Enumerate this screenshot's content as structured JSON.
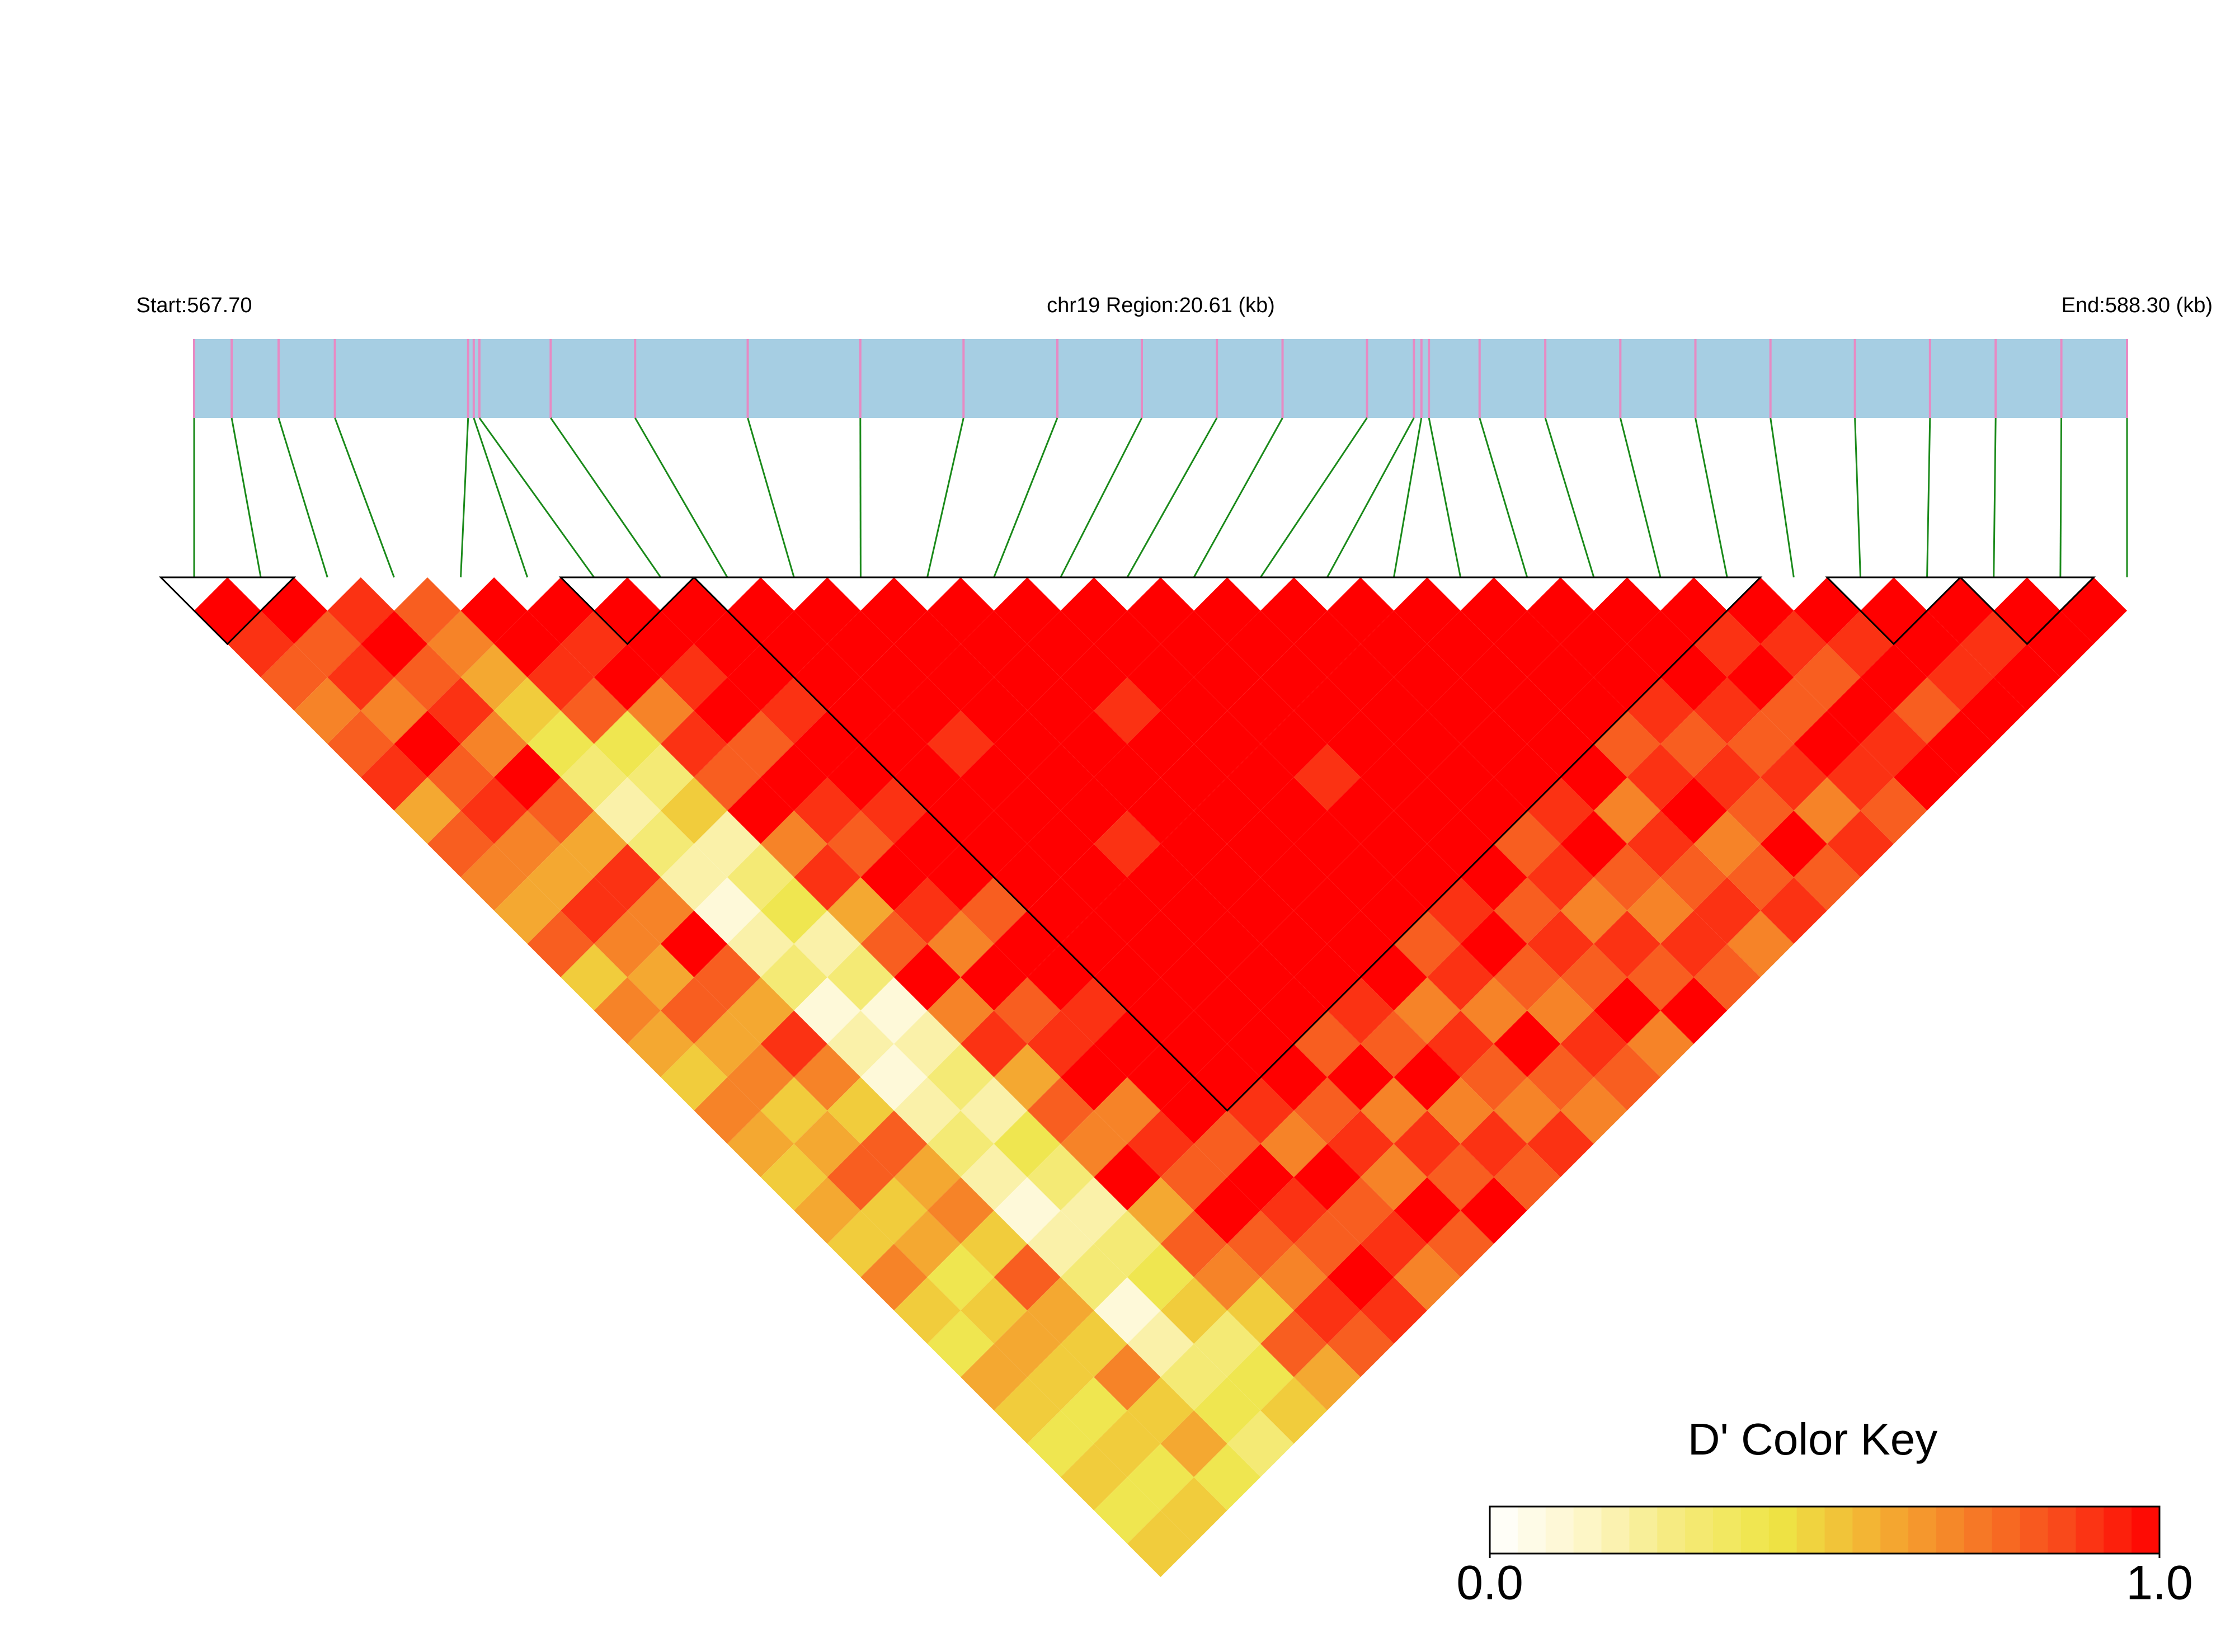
{
  "chart_data": {
    "type": "ld_heatmap",
    "start_label": "Start:567.70",
    "region_label": "chr19 Region:20.61 (kb)",
    "end_label": "End:588.30 (kb)",
    "xlim": [
      567.7,
      588.3
    ],
    "snp_positions": [
      567.7,
      568.1,
      568.6,
      569.2,
      570.62,
      570.68,
      570.74,
      571.5,
      572.4,
      573.6,
      574.8,
      575.9,
      576.9,
      577.8,
      578.6,
      579.3,
      580.2,
      580.7,
      580.78,
      580.86,
      581.4,
      582.1,
      582.9,
      583.7,
      584.5,
      585.4,
      586.2,
      586.9,
      587.6,
      588.3
    ],
    "dprime": [
      [
        1,
        0.9,
        0.8,
        0.7,
        0.8,
        0.9,
        0.6,
        0.8,
        0.7,
        0.6,
        0.8,
        0.5,
        0.7,
        0.6,
        0.5,
        0.7,
        0.6,
        0.5,
        0.6,
        0.5,
        0.7,
        0.5,
        0.4,
        0.6,
        0.5,
        0.4,
        0.5,
        0.4,
        0.5
      ],
      [
        1,
        0.8,
        0.9,
        0.7,
        1,
        0.8,
        0.9,
        0.7,
        0.6,
        0.9,
        0.7,
        0.6,
        0.8,
        0.6,
        0.7,
        0.5,
        0.6,
        0.8,
        0.5,
        0.6,
        0.4,
        0.5,
        0.6,
        0.5,
        0.4,
        0.5,
        0.4,
        0.5
      ],
      [
        0.9,
        1,
        0.8,
        0.9,
        0.7,
        1,
        0.8,
        0.6,
        0.9,
        0.7,
        1,
        0.8,
        0.6,
        0.9,
        0.7,
        0.5,
        0.8,
        0.6,
        0.7,
        0.5,
        0.8,
        0.6,
        0.5,
        0.7,
        0.5,
        0.6,
        0.4
      ],
      [
        0.8,
        0.7,
        0.6,
        0.5,
        0.4,
        0.3,
        0.2,
        0.3,
        0.2,
        0.1,
        0.2,
        0.3,
        0.1,
        0.2,
        0.1,
        0.2,
        0.3,
        0.2,
        0.1,
        0.2,
        0.3,
        0.1,
        0.2,
        0.3,
        0.4,
        0.3
      ],
      [
        1,
        1,
        0.9,
        0.8,
        0.4,
        0.3,
        0.5,
        0.2,
        0.3,
        0.4,
        0.2,
        0.3,
        0.1,
        0.2,
        0.3,
        0.2,
        0.4,
        0.3,
        0.2,
        0.3,
        0.4,
        0.5,
        0.3,
        0.4,
        0.5
      ],
      [
        1,
        0.9,
        1,
        0.7,
        0.9,
        0.8,
        1,
        0.7,
        0.9,
        0.6,
        0.8,
        1,
        0.7,
        0.9,
        0.6,
        0.8,
        0.7,
        1,
        0.6,
        0.8,
        0.7,
        0.5,
        0.8,
        0.6
      ],
      [
        1,
        1,
        0.9,
        1,
        0.8,
        1,
        0.9,
        0.8,
        1,
        0.9,
        0.7,
        1,
        0.8,
        0.9,
        1,
        0.7,
        0.9,
        0.8,
        1,
        0.8,
        0.7,
        0.9,
        0.8
      ],
      [
        1,
        1,
        1,
        0.9,
        1,
        1,
        0.9,
        1,
        1,
        0.8,
        1,
        1,
        0.9,
        1,
        1,
        1,
        0.8,
        1,
        0.9,
        0.8,
        1,
        0.9
      ],
      [
        1,
        1,
        1,
        1,
        1,
        1,
        1,
        1,
        1,
        1,
        1,
        1,
        1,
        1,
        1,
        0.9,
        0.7,
        1,
        0.8,
        0.9,
        0.7
      ],
      [
        1,
        1,
        1,
        1,
        0.9,
        1,
        1,
        1,
        1,
        1,
        1,
        1,
        1,
        1,
        1,
        0.8,
        0.9,
        0.7,
        1,
        0.8
      ],
      [
        1,
        1,
        1,
        1,
        1,
        1,
        1,
        0.9,
        1,
        1,
        1,
        1,
        1,
        0.8,
        1,
        0.7,
        0.9,
        0.8,
        1
      ],
      [
        1,
        1,
        1,
        1,
        1,
        1,
        1,
        1,
        1,
        1,
        1,
        1,
        0.9,
        0.8,
        1,
        0.7,
        0.9,
        0.8
      ],
      [
        1,
        1,
        1,
        0.9,
        1,
        1,
        1,
        1,
        1,
        1,
        1,
        1,
        0.7,
        0.9,
        0.8,
        0.7,
        0.9
      ],
      [
        1,
        1,
        1,
        1,
        1,
        1,
        1,
        1,
        1,
        1,
        0.8,
        0.9,
        0.7,
        1,
        0.8,
        0.7
      ],
      [
        1,
        1,
        1,
        1,
        1,
        0.9,
        1,
        1,
        1,
        0.9,
        1,
        0.8,
        0.7,
        0.9,
        0.8
      ],
      [
        1,
        1,
        1,
        1,
        1,
        1,
        1,
        1,
        1,
        0.8,
        0.9,
        0.8,
        1,
        0.7
      ],
      [
        1,
        1,
        1,
        1,
        1,
        1,
        1,
        0.8,
        0.9,
        0.7,
        0.9,
        0.8,
        1
      ],
      [
        1,
        1,
        1,
        1,
        1,
        1,
        0.9,
        1,
        0.8,
        0.7,
        0.9,
        0.8
      ],
      [
        1,
        1,
        1,
        1,
        1,
        1,
        0.7,
        0.9,
        0.8,
        0.9,
        0.7
      ],
      [
        1,
        1,
        1,
        1,
        0.8,
        0.9,
        1,
        0.7,
        0.8,
        0.9
      ],
      [
        1,
        1,
        1,
        0.9,
        0.8,
        0.9,
        0.8,
        1,
        0.8
      ],
      [
        1,
        1,
        1,
        0.9,
        0.8,
        0.9,
        0.7,
        0.9
      ],
      [
        1,
        0.9,
        1,
        0.8,
        1,
        0.9,
        0.8
      ],
      [
        1,
        0.9,
        0.8,
        1,
        0.9,
        1
      ],
      [
        1,
        0.9,
        1,
        0.8,
        1
      ],
      [
        1,
        1,
        0.9,
        1
      ],
      [
        1,
        0.9,
        1
      ],
      [
        1,
        1
      ],
      [
        1
      ]
    ],
    "blocks": [
      [
        0,
        1
      ],
      [
        6,
        7
      ],
      [
        8,
        23
      ],
      [
        25,
        26
      ],
      [
        27,
        28
      ]
    ],
    "bar_color": "#a6cee3",
    "snp_color": "#e78ac3",
    "link_color": "#1a8a1a",
    "color_key_title": "D' Color Key",
    "clim": [
      0,
      1
    ],
    "color_scale": [
      "#ffffff",
      "#fdf6c8",
      "#f5ea7a",
      "#eee545",
      "#f3b233",
      "#f67e27",
      "#f9481b",
      "#ff0000"
    ],
    "colorbar_ticks": [
      {
        "value": 0,
        "label": "0.0"
      },
      {
        "value": 1,
        "label": "1.0"
      }
    ]
  }
}
